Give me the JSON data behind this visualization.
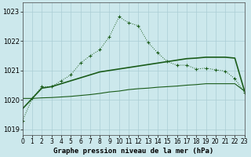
{
  "title": "Graphe pression niveau de la mer (hPa)",
  "background_color": "#cce8ec",
  "grid_color": "#aacdd4",
  "line_color": "#1a5c1a",
  "x_labels": [
    "0",
    "1",
    "2",
    "3",
    "4",
    "5",
    "6",
    "7",
    "8",
    "9",
    "10",
    "11",
    "12",
    "13",
    "14",
    "15",
    "16",
    "17",
    "18",
    "19",
    "20",
    "21",
    "22",
    "23"
  ],
  "xlim": [
    0,
    23
  ],
  "ylim": [
    1018.8,
    1023.3
  ],
  "yticks": [
    1019,
    1020,
    1021,
    1022,
    1023
  ],
  "series1_x": [
    0,
    1,
    2,
    3,
    4,
    5,
    6,
    7,
    8,
    9,
    10,
    11,
    12,
    13,
    14,
    15,
    16,
    17,
    18,
    19,
    20,
    21,
    22,
    23
  ],
  "series1_y": [
    1019.3,
    1020.05,
    1020.45,
    1020.45,
    1020.65,
    1020.85,
    1021.25,
    1021.5,
    1021.7,
    1022.15,
    1022.82,
    1022.62,
    1022.52,
    1021.95,
    1021.6,
    1021.3,
    1021.18,
    1021.18,
    1021.05,
    1021.08,
    1021.02,
    1020.98,
    1020.72,
    1020.25
  ],
  "series2_x": [
    0,
    1,
    2,
    3,
    4,
    5,
    6,
    7,
    8,
    9,
    10,
    11,
    12,
    13,
    14,
    15,
    16,
    17,
    18,
    19,
    20,
    21,
    22,
    23
  ],
  "series2_y": [
    1019.7,
    1020.05,
    1020.4,
    1020.45,
    1020.55,
    1020.65,
    1020.75,
    1020.85,
    1020.95,
    1021.0,
    1021.05,
    1021.1,
    1021.15,
    1021.2,
    1021.25,
    1021.3,
    1021.35,
    1021.4,
    1021.42,
    1021.45,
    1021.45,
    1021.45,
    1021.42,
    1020.3
  ],
  "series3_x": [
    0,
    1,
    2,
    3,
    4,
    5,
    6,
    7,
    8,
    9,
    10,
    11,
    12,
    13,
    14,
    15,
    16,
    17,
    18,
    19,
    20,
    21,
    22,
    23
  ],
  "series3_y": [
    1020.05,
    1020.05,
    1020.07,
    1020.08,
    1020.1,
    1020.12,
    1020.15,
    1020.18,
    1020.22,
    1020.27,
    1020.3,
    1020.35,
    1020.38,
    1020.4,
    1020.43,
    1020.45,
    1020.47,
    1020.5,
    1020.52,
    1020.55,
    1020.55,
    1020.55,
    1020.55,
    1020.3
  ]
}
